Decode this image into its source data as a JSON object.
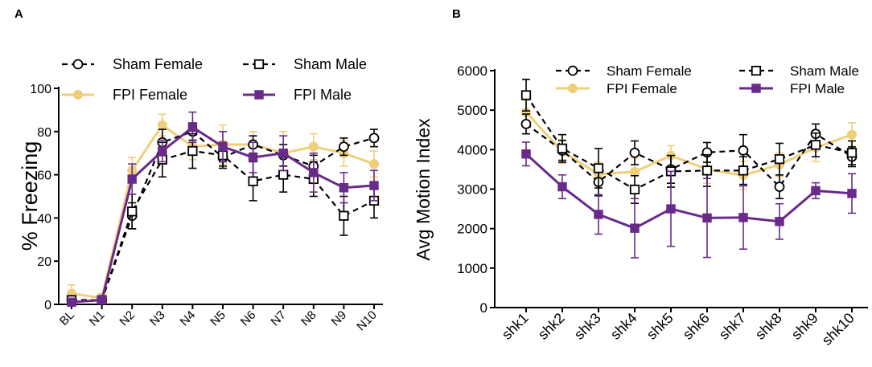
{
  "chart_data": [
    {
      "panel_label": "A",
      "type": "line",
      "title": "",
      "xlabel": "",
      "ylabel": "% Freezing",
      "ylim": [
        0,
        100
      ],
      "yticks": [
        0,
        20,
        40,
        60,
        80,
        100
      ],
      "categories": [
        "BL",
        "N1",
        "N2",
        "N3",
        "N4",
        "N5",
        "N6",
        "N7",
        "N8",
        "N9",
        "N10"
      ],
      "legend": "top",
      "series": [
        {
          "name": "Sham Female",
          "marker": "circle-open",
          "line": "dashed",
          "color": "#000000",
          "values": [
            2,
            2,
            41,
            75,
            80,
            68,
            74,
            69,
            64,
            73,
            77
          ],
          "errors": [
            1,
            1,
            6,
            6,
            4,
            4,
            4,
            5,
            5,
            4,
            4
          ]
        },
        {
          "name": "Sham Male",
          "marker": "square-open",
          "line": "dashed",
          "color": "#000000",
          "values": [
            2,
            2,
            43,
            67,
            71,
            69,
            57,
            60,
            58,
            41,
            48
          ],
          "errors": [
            1,
            1,
            8,
            8,
            8,
            6,
            9,
            8,
            8,
            9,
            8
          ]
        },
        {
          "name": "FPI Female",
          "marker": "circle-filled",
          "line": "solid",
          "color": "#f0cf7a",
          "values": [
            5,
            3,
            62,
            83,
            73,
            74,
            74,
            70,
            73,
            70,
            65
          ],
          "errors": [
            4,
            2,
            6,
            5,
            6,
            9,
            6,
            10,
            6,
            6,
            6
          ]
        },
        {
          "name": "FPI Male",
          "marker": "square-filled",
          "line": "solid",
          "color": "#6a2a8a",
          "values": [
            1,
            2,
            58,
            71,
            82,
            73,
            68,
            70,
            61,
            54,
            55
          ],
          "errors": [
            1,
            1,
            7,
            5,
            7,
            7,
            7,
            8,
            9,
            7,
            7
          ]
        }
      ]
    },
    {
      "panel_label": "B",
      "type": "line",
      "title": "",
      "xlabel": "",
      "ylabel": "Avg Motion Index",
      "ylim": [
        0,
        6000
      ],
      "yticks": [
        0,
        1000,
        2000,
        3000,
        4000,
        5000,
        6000
      ],
      "categories": [
        "shk1",
        "shk2",
        "shk3",
        "shk4",
        "shk5",
        "shk6",
        "shk7",
        "shk8",
        "shk9",
        "shk10"
      ],
      "legend": "top",
      "series": [
        {
          "name": "Sham Female",
          "marker": "circle-open",
          "line": "dashed",
          "color": "#000000",
          "values": [
            4650,
            3980,
            3180,
            3920,
            3500,
            3930,
            3980,
            3060,
            4400,
            3820
          ],
          "errors": [
            250,
            250,
            350,
            300,
            350,
            250,
            400,
            300,
            250,
            250
          ]
        },
        {
          "name": "Sham Male",
          "marker": "square-open",
          "line": "dashed",
          "color": "#000000",
          "values": [
            5380,
            4030,
            3530,
            2990,
            3450,
            3470,
            3470,
            3760,
            4120,
            3920
          ],
          "errors": [
            400,
            350,
            500,
            350,
            400,
            400,
            350,
            400,
            300,
            300
          ]
        },
        {
          "name": "FPI Female",
          "marker": "circle-filled",
          "line": "solid",
          "color": "#f0cf7a",
          "values": [
            4950,
            3950,
            3380,
            3440,
            3850,
            3500,
            3350,
            3620,
            4050,
            4380
          ],
          "errors": [
            300,
            300,
            300,
            350,
            250,
            350,
            350,
            300,
            350,
            300
          ]
        },
        {
          "name": "FPI Male",
          "marker": "square-filled",
          "line": "solid",
          "color": "#6a2a8a",
          "values": [
            3890,
            3060,
            2360,
            2010,
            2500,
            2270,
            2280,
            2180,
            2960,
            2890
          ],
          "errors": [
            300,
            300,
            500,
            750,
            950,
            1000,
            800,
            450,
            200,
            500
          ]
        }
      ]
    }
  ]
}
